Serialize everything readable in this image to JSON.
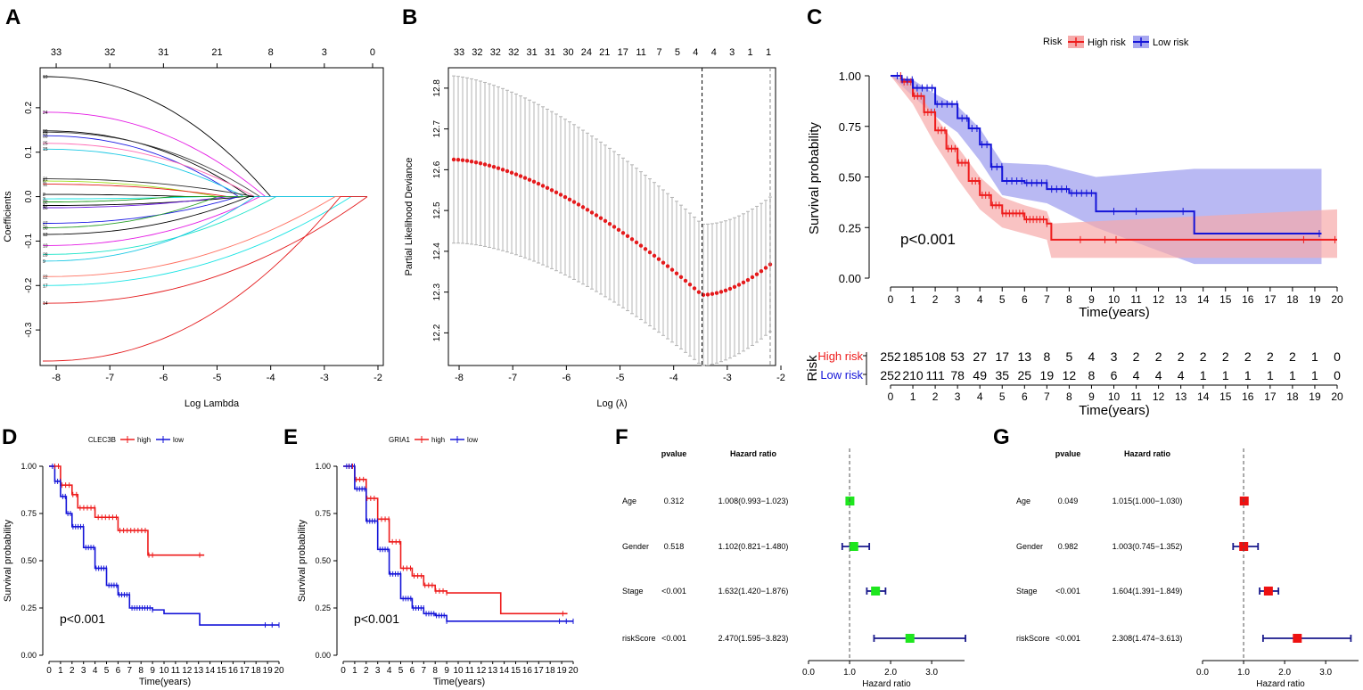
{
  "colors": {
    "high": "#ee1c1c",
    "low": "#1414d8",
    "high_fill": "#f6aaaa",
    "low_fill": "#a8a8f0",
    "forest_f": "#1ee61e",
    "forest_g": "#ee1111",
    "axis": "#000000",
    "grid_bar": "#b4b4b4",
    "path_red": "#e41a1c"
  },
  "panel_labels": [
    "A",
    "B",
    "C",
    "D",
    "E",
    "F",
    "G"
  ],
  "panel_a": {
    "type": "line",
    "xlabel": "Log Lambda",
    "ylabel": "Coefficients",
    "xlim": [
      -8.3,
      -1.9
    ],
    "ylim": [
      -0.38,
      0.29
    ],
    "x_ticks": [
      "-8",
      "-7",
      "-6",
      "-5",
      "-4",
      "-3",
      "-2"
    ],
    "y_ticks": [
      "-0.3",
      "-0.2",
      "-0.1",
      "0.0",
      "0.1",
      "0.2"
    ],
    "top_ticks": [
      "33",
      "32",
      "31",
      "21",
      "8",
      "3",
      "0"
    ],
    "path_end_labels": [
      "19",
      "24",
      "29",
      "26",
      "33",
      "25",
      "15",
      "31",
      "6",
      "11",
      "2",
      "3",
      "32",
      "1",
      "36",
      "27",
      "30",
      "12",
      "10",
      "28",
      "9",
      "22",
      "17",
      "14"
    ],
    "paths": [
      0.27,
      0.19,
      0.148,
      0.145,
      0.137,
      0.12,
      0.107,
      0.04,
      0.035,
      0.028,
      0.005,
      -0.005,
      -0.012,
      -0.02,
      -0.025,
      -0.06,
      -0.07,
      -0.085,
      -0.11,
      -0.13,
      -0.145,
      -0.18,
      -0.2,
      -0.24,
      -0.37
    ]
  },
  "panel_b": {
    "type": "scatter",
    "xlabel": "Log (λ)",
    "ylabel": "Partial Likelihood Deviance",
    "xlim": [
      -8.2,
      -2.1
    ],
    "ylim": [
      12.12,
      12.85
    ],
    "x_ticks": [
      "-8",
      "-7",
      "-6",
      "-5",
      "-4",
      "-3",
      "-2"
    ],
    "y_ticks": [
      "12.2",
      "12.3",
      "12.4",
      "12.5",
      "12.6",
      "12.7",
      "12.8"
    ],
    "top_ticks": [
      "33",
      "32",
      "32",
      "32",
      "31",
      "31",
      "30",
      "24",
      "21",
      "17",
      "11",
      "7",
      "5",
      "4",
      "4",
      "3",
      "1",
      "1"
    ],
    "lambda_min": -3.47,
    "lambda_1se": -2.2,
    "min_deviance": 12.293,
    "start_deviance": 12.625,
    "end_deviance": 12.368,
    "upper_start": 12.83,
    "lower_start": 12.415,
    "lower_min": 12.135
  },
  "panel_c": {
    "type": "line",
    "title": "Risk",
    "legend": [
      "High risk",
      "Low risk"
    ],
    "xlabel": "Time(years)",
    "ylabel": "Survival probability",
    "pvalue": "p<0.001",
    "x_ticks": [
      "0",
      "1",
      "2",
      "3",
      "4",
      "5",
      "6",
      "7",
      "8",
      "9",
      "10",
      "11",
      "12",
      "13",
      "14",
      "15",
      "16",
      "17",
      "18",
      "19",
      "20"
    ],
    "y_ticks": [
      "0.00",
      "0.25",
      "0.50",
      "0.75",
      "1.00"
    ],
    "series": [
      {
        "name": "High risk",
        "values": [
          [
            0,
            1
          ],
          [
            0.5,
            0.97
          ],
          [
            1,
            0.9
          ],
          [
            1.5,
            0.82
          ],
          [
            2,
            0.73
          ],
          [
            2.5,
            0.64
          ],
          [
            3,
            0.57
          ],
          [
            3.5,
            0.48
          ],
          [
            4,
            0.41
          ],
          [
            4.5,
            0.36
          ],
          [
            5,
            0.32
          ],
          [
            6,
            0.29
          ],
          [
            7,
            0.27
          ],
          [
            7.2,
            0.19
          ],
          [
            20,
            0.19
          ]
        ]
      },
      {
        "name": "Low risk",
        "values": [
          [
            0,
            1
          ],
          [
            0.5,
            0.98
          ],
          [
            1,
            0.94
          ],
          [
            2,
            0.86
          ],
          [
            3,
            0.79
          ],
          [
            3.5,
            0.74
          ],
          [
            4,
            0.66
          ],
          [
            4.5,
            0.55
          ],
          [
            5,
            0.48
          ],
          [
            6,
            0.47
          ],
          [
            7,
            0.44
          ],
          [
            8,
            0.42
          ],
          [
            9.2,
            0.33
          ],
          [
            13.5,
            0.33
          ],
          [
            13.6,
            0.22
          ],
          [
            19.3,
            0.22
          ]
        ]
      }
    ],
    "ci_high": {
      "upper": [
        [
          0,
          1
        ],
        [
          1,
          0.95
        ],
        [
          2,
          0.8
        ],
        [
          3,
          0.65
        ],
        [
          4,
          0.5
        ],
        [
          5,
          0.4
        ],
        [
          6,
          0.36
        ],
        [
          7,
          0.33
        ],
        [
          7.2,
          0.27
        ],
        [
          20,
          0.34
        ]
      ],
      "lower": [
        [
          0,
          1
        ],
        [
          1,
          0.86
        ],
        [
          2,
          0.66
        ],
        [
          3,
          0.49
        ],
        [
          4,
          0.34
        ],
        [
          5,
          0.25
        ],
        [
          6,
          0.22
        ],
        [
          7,
          0.19
        ],
        [
          7.2,
          0.1
        ],
        [
          20,
          0.1
        ]
      ]
    },
    "ci_low": {
      "upper": [
        [
          0,
          1
        ],
        [
          1,
          0.98
        ],
        [
          2,
          0.91
        ],
        [
          3,
          0.85
        ],
        [
          4,
          0.74
        ],
        [
          5,
          0.57
        ],
        [
          7,
          0.56
        ],
        [
          9.2,
          0.5
        ],
        [
          13.6,
          0.54
        ],
        [
          19.3,
          0.54
        ]
      ],
      "lower": [
        [
          0,
          1
        ],
        [
          1,
          0.9
        ],
        [
          2,
          0.8
        ],
        [
          3,
          0.72
        ],
        [
          4,
          0.58
        ],
        [
          5,
          0.41
        ],
        [
          7,
          0.37
        ],
        [
          9.2,
          0.25
        ],
        [
          13.6,
          0.07
        ],
        [
          19.3,
          0.07
        ]
      ]
    },
    "risk_table": {
      "title": "Risk",
      "xlabel": "Time(years)",
      "rows": [
        {
          "name": "High risk",
          "counts": [
            "252",
            "185",
            "108",
            "53",
            "27",
            "17",
            "13",
            "8",
            "5",
            "4",
            "3",
            "2",
            "2",
            "2",
            "2",
            "2",
            "2",
            "2",
            "2",
            "1",
            "0"
          ]
        },
        {
          "name": "Low risk",
          "counts": [
            "252",
            "210",
            "111",
            "78",
            "49",
            "35",
            "25",
            "19",
            "12",
            "8",
            "6",
            "4",
            "4",
            "4",
            "1",
            "1",
            "1",
            "1",
            "1",
            "1",
            "0"
          ]
        }
      ]
    }
  },
  "panel_d": {
    "type": "line",
    "gene": "CLEC3B",
    "legend": [
      "high",
      "low"
    ],
    "xlabel": "Time(years)",
    "ylabel": "Survival probability",
    "pvalue": "p<0.001",
    "x_ticks": [
      "0",
      "1",
      "2",
      "3",
      "4",
      "5",
      "6",
      "7",
      "8",
      "9",
      "10",
      "11",
      "12",
      "13",
      "14",
      "15",
      "16",
      "17",
      "18",
      "19",
      "20"
    ],
    "y_ticks": [
      "0.00",
      "0.25",
      "0.50",
      "0.75",
      "1.00"
    ],
    "series": [
      {
        "name": "high",
        "values": [
          [
            0,
            1
          ],
          [
            1,
            0.9
          ],
          [
            2,
            0.85
          ],
          [
            2.5,
            0.78
          ],
          [
            4,
            0.73
          ],
          [
            6,
            0.66
          ],
          [
            8.5,
            0.66
          ],
          [
            8.6,
            0.53
          ],
          [
            13.5,
            0.53
          ]
        ]
      },
      {
        "name": "low",
        "values": [
          [
            0,
            1
          ],
          [
            0.5,
            0.92
          ],
          [
            1,
            0.84
          ],
          [
            1.5,
            0.75
          ],
          [
            2,
            0.68
          ],
          [
            3,
            0.57
          ],
          [
            4,
            0.46
          ],
          [
            5,
            0.37
          ],
          [
            6,
            0.32
          ],
          [
            7,
            0.25
          ],
          [
            9,
            0.24
          ],
          [
            10,
            0.22
          ],
          [
            13,
            0.22
          ],
          [
            13.1,
            0.16
          ],
          [
            20,
            0.16
          ]
        ]
      }
    ]
  },
  "panel_e": {
    "type": "line",
    "gene": "GRIA1",
    "legend": [
      "high",
      "low"
    ],
    "xlabel": "Time(years)",
    "ylabel": "Survival probability",
    "pvalue": "p<0.001",
    "x_ticks": [
      "0",
      "1",
      "2",
      "3",
      "4",
      "5",
      "6",
      "7",
      "8",
      "9",
      "10",
      "11",
      "12",
      "13",
      "14",
      "15",
      "16",
      "17",
      "18",
      "19",
      "20"
    ],
    "y_ticks": [
      "0.00",
      "0.25",
      "0.50",
      "0.75",
      "1.00"
    ],
    "series": [
      {
        "name": "high",
        "values": [
          [
            0,
            1
          ],
          [
            1,
            0.93
          ],
          [
            2,
            0.83
          ],
          [
            3,
            0.72
          ],
          [
            4,
            0.6
          ],
          [
            5,
            0.46
          ],
          [
            6,
            0.42
          ],
          [
            7,
            0.37
          ],
          [
            8,
            0.34
          ],
          [
            9,
            0.33
          ],
          [
            13.6,
            0.33
          ],
          [
            13.7,
            0.22
          ],
          [
            19.5,
            0.22
          ]
        ]
      },
      {
        "name": "low",
        "values": [
          [
            0,
            1
          ],
          [
            1,
            0.88
          ],
          [
            2,
            0.71
          ],
          [
            3,
            0.56
          ],
          [
            4,
            0.43
          ],
          [
            5,
            0.3
          ],
          [
            6,
            0.25
          ],
          [
            7,
            0.22
          ],
          [
            8,
            0.21
          ],
          [
            9,
            0.18
          ],
          [
            20,
            0.18
          ]
        ]
      }
    ]
  },
  "panel_f": {
    "type": "table",
    "header": [
      "pvalue",
      "Hazard ratio"
    ],
    "xlabel": "Hazard ratio",
    "x_ticks": [
      "0.0",
      "1.0",
      "2.0",
      "3.0"
    ],
    "xlim": [
      0,
      3.8
    ],
    "rows": [
      {
        "name": "Age",
        "pvalue": "0.312",
        "hr_text": "1.008(0.993−1.023)",
        "hr": 1.008,
        "lo": 0.993,
        "hi": 1.023
      },
      {
        "name": "Gender",
        "pvalue": "0.518",
        "hr_text": "1.102(0.821−1.480)",
        "hr": 1.102,
        "lo": 0.821,
        "hi": 1.48
      },
      {
        "name": "Stage",
        "pvalue": "<0.001",
        "hr_text": "1.632(1.420−1.876)",
        "hr": 1.632,
        "lo": 1.42,
        "hi": 1.876
      },
      {
        "name": "riskScore",
        "pvalue": "<0.001",
        "hr_text": "2.470(1.595−3.823)",
        "hr": 2.47,
        "lo": 1.595,
        "hi": 3.823
      }
    ]
  },
  "panel_g": {
    "type": "table",
    "header": [
      "pvalue",
      "Hazard ratio"
    ],
    "xlabel": "Hazard ratio",
    "x_ticks": [
      "0.0",
      "1.0",
      "2.0",
      "3.0"
    ],
    "xlim": [
      0,
      3.8
    ],
    "rows": [
      {
        "name": "Age",
        "pvalue": "0.049",
        "hr_text": "1.015(1.000−1.030)",
        "hr": 1.015,
        "lo": 1.0,
        "hi": 1.03
      },
      {
        "name": "Gender",
        "pvalue": "0.982",
        "hr_text": "1.003(0.745−1.352)",
        "hr": 1.003,
        "lo": 0.745,
        "hi": 1.352
      },
      {
        "name": "Stage",
        "pvalue": "<0.001",
        "hr_text": "1.604(1.391−1.849)",
        "hr": 1.604,
        "lo": 1.391,
        "hi": 1.849
      },
      {
        "name": "riskScore",
        "pvalue": "<0.001",
        "hr_text": "2.308(1.474−3.613)",
        "hr": 2.308,
        "lo": 1.474,
        "hi": 3.613
      }
    ]
  }
}
